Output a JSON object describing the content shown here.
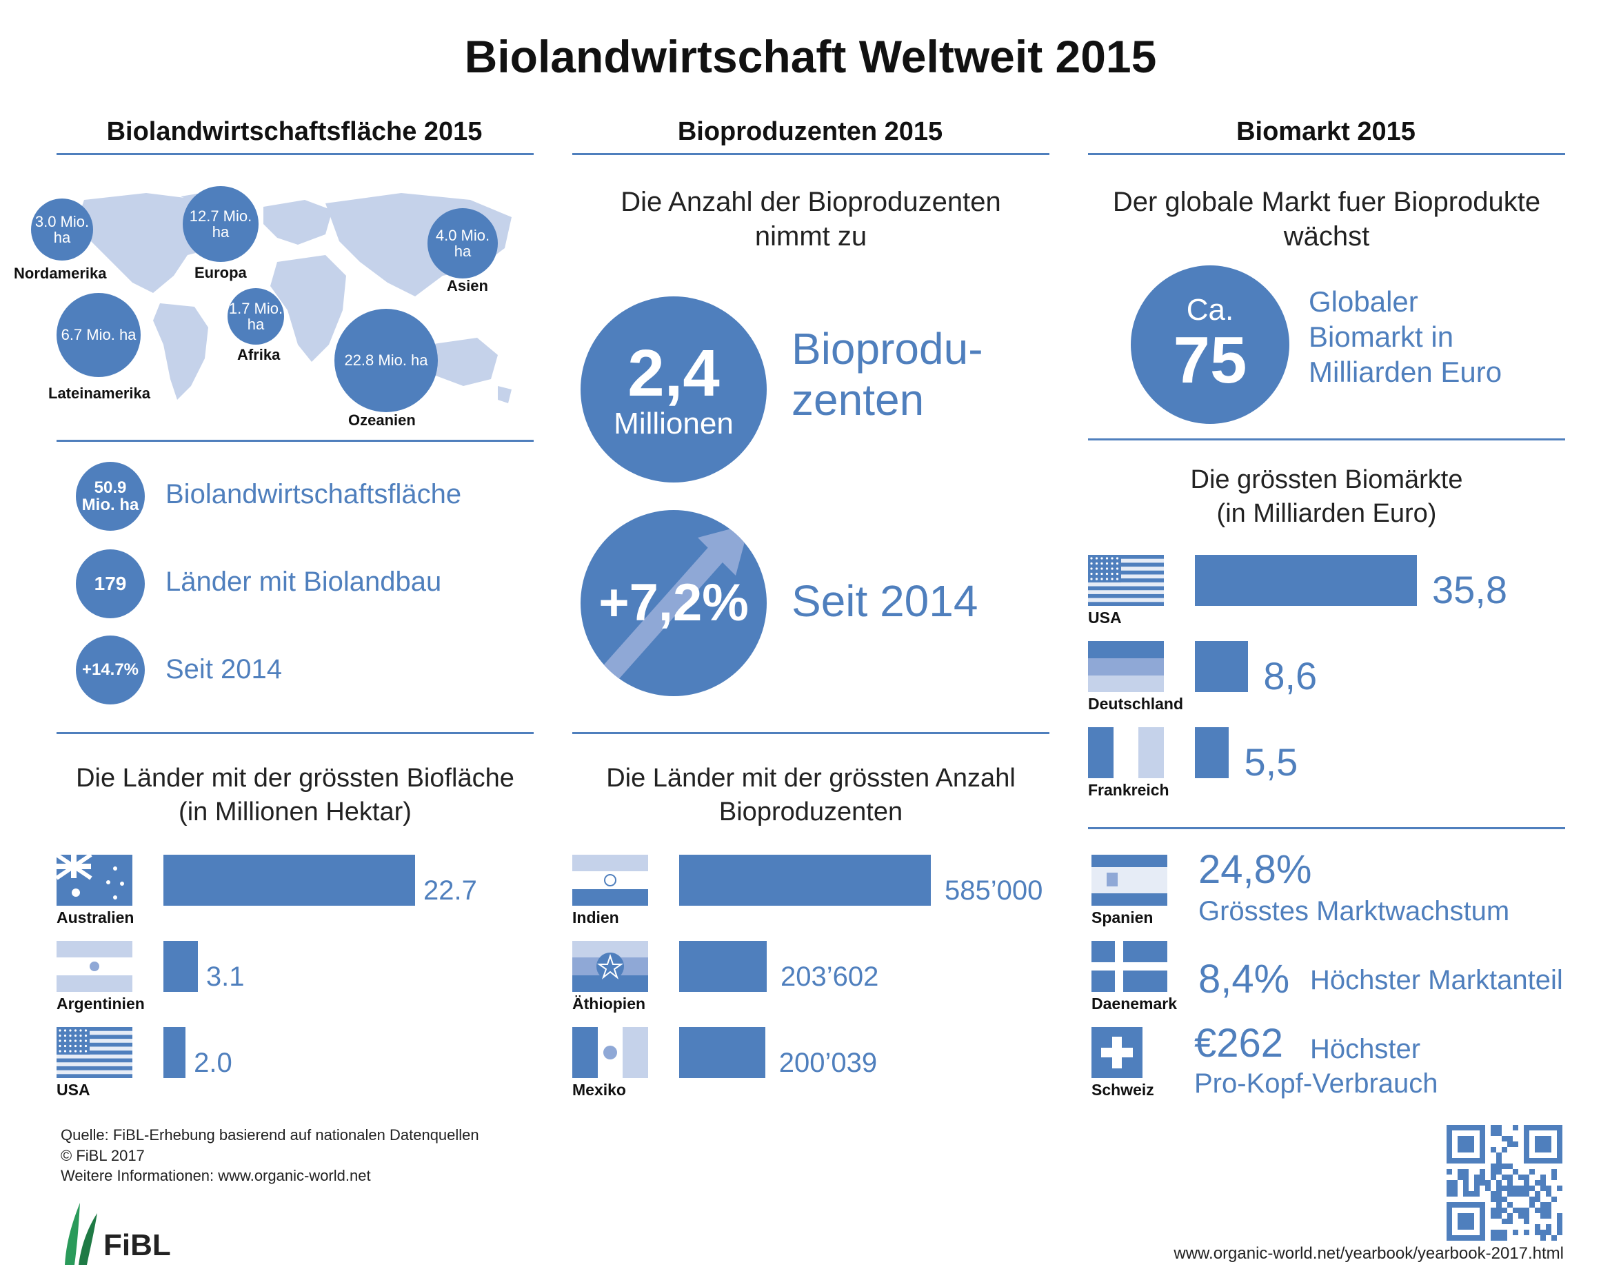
{
  "title": "Biolandwirtschaft Weltweit 2015",
  "colors": {
    "accent": "#4f7fbd",
    "light": "#c5d2ea",
    "mid": "#8fa8d6"
  },
  "col1": {
    "heading": "Biolandwirtschaftsfläche 2015",
    "regions": [
      {
        "value": "3.0 Mio. ha",
        "label": "Nordamerika"
      },
      {
        "value": "12.7 Mio. ha",
        "label": "Europa"
      },
      {
        "value": "4.0 Mio. ha",
        "label": "Asien"
      },
      {
        "value": "6.7 Mio. ha",
        "label": "Lateinamerika"
      },
      {
        "value": "1.7 Mio. ha",
        "label": "Afrika"
      },
      {
        "value": "22.8 Mio. ha",
        "label": "Ozeanien"
      }
    ],
    "stats": [
      {
        "badge": "50.9 Mio. ha",
        "text": "Biolandwirtschaftsfläche"
      },
      {
        "badge": "179",
        "text": "Länder mit Biolandbau"
      },
      {
        "badge": "+14.7%",
        "text": "Seit 2014"
      }
    ],
    "chart_heading_1": "Die Länder mit der grössten Biofläche",
    "chart_heading_2": "(in Millionen Hektar)"
  },
  "col2": {
    "heading": "Bioproduzenten 2015",
    "intro_1": "Die Anzahl der Bioproduzenten",
    "intro_2": "nimmt zu",
    "big_value": "2,4",
    "big_unit": "Millionen",
    "big_label_1": "Bioprodu-",
    "big_label_2": "zenten",
    "growth": "+7,2%",
    "growth_label": "Seit 2014",
    "chart_heading_1": "Die Länder mit der grössten Anzahl",
    "chart_heading_2": "Bioproduzenten"
  },
  "col3": {
    "heading": "Biomarkt 2015",
    "intro_1": "Der globale Markt fuer Bioprodukte",
    "intro_2": "wächst",
    "market_ca": "Ca.",
    "market_value": "75",
    "market_label_1": "Globaler",
    "market_label_2": "Biomarkt in",
    "market_label_3": "Milliarden Euro",
    "chart_heading_1": "Die grössten Biomärkte",
    "chart_heading_2": "(in Milliarden Euro)",
    "highlights": [
      {
        "country": "Spanien",
        "value": "24,8%",
        "text": "Grösstes Marktwachstum"
      },
      {
        "country": "Daenemark",
        "value": "8,4%",
        "text": "Höchster Marktanteil"
      },
      {
        "country": "Schweiz",
        "value": "€262",
        "text": "Höchster",
        "text2": "Pro-Kopf-Verbrauch"
      }
    ]
  },
  "chart_data": [
    {
      "type": "bar",
      "categories": [
        "Australien",
        "Argentinien",
        "USA"
      ],
      "values": [
        22.7,
        3.1,
        2.0
      ],
      "value_labels": [
        "22.7",
        "3.1",
        "2.0"
      ],
      "title": "Die Länder mit der grössten Biofläche (in Millionen Hektar)"
    },
    {
      "type": "bar",
      "categories": [
        "Indien",
        "Äthiopien",
        "Mexiko"
      ],
      "values": [
        585000,
        203602,
        200039
      ],
      "value_labels": [
        "585’000",
        "203’602",
        "200’039"
      ],
      "title": "Die Länder mit der grössten Anzahl Bioproduzenten"
    },
    {
      "type": "bar",
      "categories": [
        "USA",
        "Deutschland",
        "Frankreich"
      ],
      "values": [
        35.8,
        8.6,
        5.5
      ],
      "value_labels": [
        "35,8",
        "8,6",
        "5,5"
      ],
      "title": "Die grössten Biomärkte (in Milliarden Euro)"
    }
  ],
  "footer": {
    "source": "Quelle: FiBL-Erhebung basierend auf nationalen Datenquellen",
    "copyright": "© FiBL 2017",
    "info": "Weitere Informationen: www.organic-world.net",
    "logo": "FiBL",
    "url": "www.organic-world.net/yearbook/yearbook-2017.html"
  }
}
